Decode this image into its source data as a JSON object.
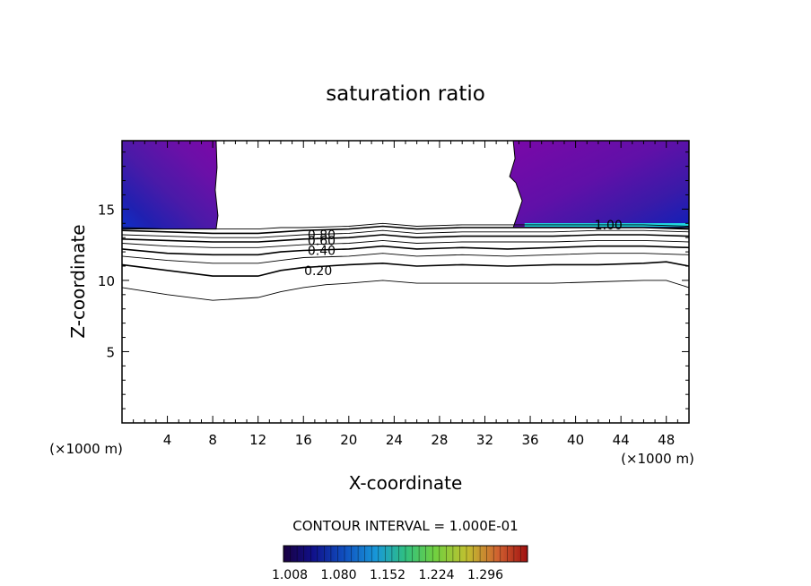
{
  "chart_data": {
    "type": "contour",
    "title": "saturation ratio",
    "xlabel": "X-coordinate",
    "ylabel": "Z-coordinate",
    "x_unit_left": "(×1000 m)",
    "x_unit_right": "(×1000 m)",
    "xlim": [
      0,
      50
    ],
    "ylim": [
      0,
      19.8
    ],
    "xticks": [
      4,
      8,
      12,
      16,
      20,
      24,
      28,
      32,
      36,
      40,
      44,
      48
    ],
    "yticks": [
      5,
      10,
      15
    ],
    "contour_interval_text": "CONTOUR INTERVAL = 1.000E-01",
    "contour_labels": [
      {
        "text": "0.80",
        "x": 17.6,
        "z": 13.2
      },
      {
        "text": "0.60",
        "x": 17.6,
        "z": 12.8
      },
      {
        "text": "0.40",
        "x": 17.6,
        "z": 12.1
      },
      {
        "text": "0.20",
        "x": 17.3,
        "z": 10.7
      },
      {
        "text": "1.00",
        "x": 42.9,
        "z": 13.9
      }
    ],
    "contour_lines": [
      {
        "level": 0.1,
        "points": [
          [
            0,
            9.5
          ],
          [
            4,
            9.0
          ],
          [
            8,
            8.6
          ],
          [
            12,
            8.8
          ],
          [
            14,
            9.2
          ],
          [
            16,
            9.5
          ],
          [
            18,
            9.7
          ],
          [
            20,
            9.8
          ],
          [
            23,
            10.0
          ],
          [
            26,
            9.8
          ],
          [
            30,
            9.8
          ],
          [
            34,
            9.8
          ],
          [
            38,
            9.8
          ],
          [
            42,
            9.9
          ],
          [
            46,
            10.0
          ],
          [
            48,
            10.0
          ],
          [
            50,
            9.5
          ]
        ]
      },
      {
        "level": 0.2,
        "points": [
          [
            0,
            11.1
          ],
          [
            4,
            10.7
          ],
          [
            8,
            10.3
          ],
          [
            12,
            10.3
          ],
          [
            14,
            10.7
          ],
          [
            16,
            10.9
          ],
          [
            18,
            11.0
          ],
          [
            20,
            11.1
          ],
          [
            23,
            11.2
          ],
          [
            26,
            11.0
          ],
          [
            30,
            11.1
          ],
          [
            34,
            11.0
          ],
          [
            38,
            11.1
          ],
          [
            42,
            11.1
          ],
          [
            46,
            11.2
          ],
          [
            48,
            11.3
          ],
          [
            50,
            11.0
          ]
        ]
      },
      {
        "level": 0.3,
        "points": [
          [
            0,
            11.7
          ],
          [
            4,
            11.4
          ],
          [
            8,
            11.2
          ],
          [
            12,
            11.2
          ],
          [
            14,
            11.4
          ],
          [
            16,
            11.6
          ],
          [
            20,
            11.7
          ],
          [
            23,
            11.9
          ],
          [
            26,
            11.7
          ],
          [
            30,
            11.8
          ],
          [
            34,
            11.7
          ],
          [
            38,
            11.8
          ],
          [
            42,
            11.9
          ],
          [
            46,
            11.9
          ],
          [
            50,
            11.8
          ]
        ]
      },
      {
        "level": 0.4,
        "points": [
          [
            0,
            12.2
          ],
          [
            4,
            11.9
          ],
          [
            8,
            11.8
          ],
          [
            12,
            11.8
          ],
          [
            14,
            12.0
          ],
          [
            16,
            12.1
          ],
          [
            20,
            12.2
          ],
          [
            23,
            12.4
          ],
          [
            26,
            12.2
          ],
          [
            30,
            12.3
          ],
          [
            34,
            12.2
          ],
          [
            38,
            12.3
          ],
          [
            42,
            12.4
          ],
          [
            46,
            12.4
          ],
          [
            50,
            12.3
          ]
        ]
      },
      {
        "level": 0.5,
        "points": [
          [
            0,
            12.6
          ],
          [
            4,
            12.4
          ],
          [
            8,
            12.3
          ],
          [
            12,
            12.3
          ],
          [
            14,
            12.4
          ],
          [
            16,
            12.5
          ],
          [
            20,
            12.6
          ],
          [
            23,
            12.8
          ],
          [
            26,
            12.6
          ],
          [
            30,
            12.7
          ],
          [
            34,
            12.7
          ],
          [
            38,
            12.7
          ],
          [
            42,
            12.8
          ],
          [
            46,
            12.8
          ],
          [
            50,
            12.7
          ]
        ]
      },
      {
        "level": 0.6,
        "points": [
          [
            0,
            12.9
          ],
          [
            4,
            12.8
          ],
          [
            8,
            12.7
          ],
          [
            12,
            12.7
          ],
          [
            14,
            12.8
          ],
          [
            16,
            12.9
          ],
          [
            20,
            13.0
          ],
          [
            23,
            13.2
          ],
          [
            26,
            13.0
          ],
          [
            30,
            13.1
          ],
          [
            34,
            13.1
          ],
          [
            38,
            13.1
          ],
          [
            42,
            13.2
          ],
          [
            46,
            13.2
          ],
          [
            50,
            13.1
          ]
        ]
      },
      {
        "level": 0.7,
        "points": [
          [
            0,
            13.2
          ],
          [
            4,
            13.1
          ],
          [
            8,
            13.0
          ],
          [
            12,
            13.0
          ],
          [
            14,
            13.1
          ],
          [
            16,
            13.2
          ],
          [
            20,
            13.3
          ],
          [
            23,
            13.5
          ],
          [
            26,
            13.3
          ],
          [
            30,
            13.4
          ],
          [
            34,
            13.4
          ],
          [
            38,
            13.4
          ],
          [
            42,
            13.5
          ],
          [
            46,
            13.5
          ],
          [
            50,
            13.4
          ]
        ]
      },
      {
        "level": 0.8,
        "points": [
          [
            0,
            13.5
          ],
          [
            4,
            13.4
          ],
          [
            8,
            13.3
          ],
          [
            12,
            13.3
          ],
          [
            14,
            13.4
          ],
          [
            16,
            13.5
          ],
          [
            20,
            13.6
          ],
          [
            23,
            13.8
          ],
          [
            26,
            13.6
          ],
          [
            30,
            13.7
          ],
          [
            34,
            13.7
          ],
          [
            38,
            13.7
          ],
          [
            42,
            13.7
          ],
          [
            46,
            13.7
          ],
          [
            50,
            13.6
          ]
        ]
      },
      {
        "level": 0.9,
        "points": [
          [
            0,
            13.7
          ],
          [
            4,
            13.6
          ],
          [
            8,
            13.6
          ],
          [
            12,
            13.6
          ],
          [
            14,
            13.7
          ],
          [
            16,
            13.7
          ],
          [
            20,
            13.8
          ],
          [
            23,
            14.0
          ],
          [
            26,
            13.8
          ],
          [
            30,
            13.9
          ],
          [
            34,
            13.9
          ],
          [
            38,
            13.9
          ],
          [
            42,
            13.9
          ],
          [
            46,
            13.9
          ],
          [
            50,
            13.8
          ]
        ]
      }
    ],
    "filled_regions": [
      {
        "name": "left",
        "x_range": [
          0,
          8.3
        ],
        "z_range": [
          13.6,
          19.8
        ]
      },
      {
        "name": "right",
        "x_range": [
          34.5,
          50
        ],
        "z_range": [
          13.7,
          19.8
        ]
      }
    ],
    "colorbar": {
      "ticks": [
        "1.008",
        "1.080",
        "1.152",
        "1.224",
        "1.296"
      ],
      "colors": [
        "#1a0050",
        "#1020a0",
        "#1860d0",
        "#20a0c0",
        "#30c070",
        "#60d040",
        "#a0d030",
        "#d09030",
        "#d04020",
        "#a01010"
      ]
    },
    "grid": false
  }
}
